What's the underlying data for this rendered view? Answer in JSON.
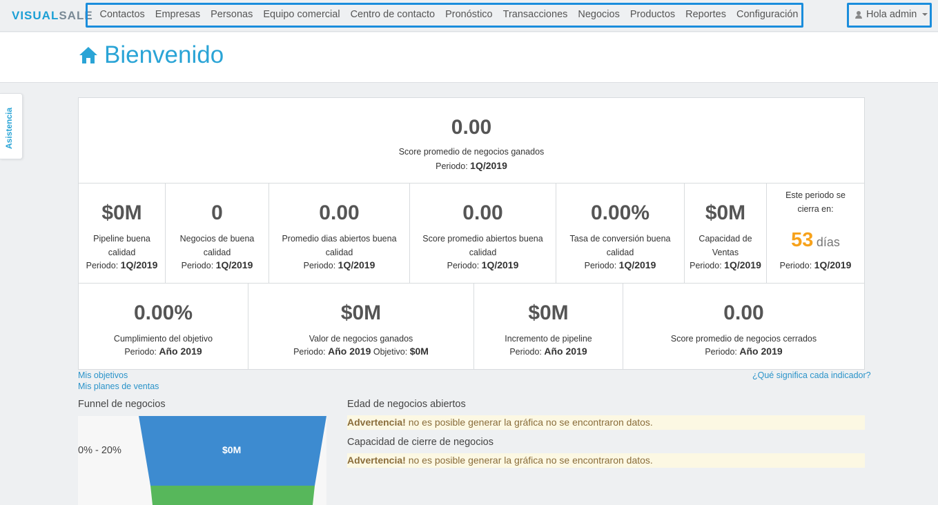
{
  "brand": {
    "part1": "VISUAL",
    "part2": "SALE"
  },
  "nav": {
    "items": [
      "Contactos",
      "Empresas",
      "Personas",
      "Equipo comercial",
      "Centro de contacto",
      "Pronóstico",
      "Transacciones",
      "Negocios",
      "Productos",
      "Reportes",
      "Configuración"
    ],
    "user_label": "Hola admin"
  },
  "side_tab": {
    "label": "Asistencia"
  },
  "page": {
    "title": "Bienvenido"
  },
  "top_kpi": {
    "value": "0.00",
    "label": "Score promedio de negocios ganados",
    "period_prefix": "Periodo:",
    "period": "1Q/2019"
  },
  "row1": [
    {
      "value": "$0M",
      "label": "Pipeline buena calidad",
      "period_prefix": "Periodo:",
      "period": "1Q/2019"
    },
    {
      "value": "0",
      "label": "Negocios de buena calidad",
      "period_prefix": "Periodo:",
      "period": "1Q/2019"
    },
    {
      "value": "0.00",
      "label": "Promedio dias abiertos buena calidad",
      "period_prefix": "Periodo:",
      "period": "1Q/2019"
    },
    {
      "value": "0.00",
      "label": "Score promedio abiertos buena calidad",
      "period_prefix": "Periodo:",
      "period": "1Q/2019"
    },
    {
      "value": "0.00%",
      "label": "Tasa de conversión buena calidad",
      "period_prefix": "Periodo:",
      "period": "1Q/2019"
    },
    {
      "value": "$0M",
      "label": "Capacidad de Ventas",
      "period_prefix": "Periodo:",
      "period": "1Q/2019"
    }
  ],
  "closing": {
    "label": "Este periodo se cierra en:",
    "days": "53",
    "days_word": "días",
    "period_prefix": "Periodo:",
    "period": "1Q/2019"
  },
  "row2": [
    {
      "value": "0.00%",
      "label": "Cumplimiento del objetivo",
      "period_prefix": "Periodo:",
      "period": "Año 2019"
    },
    {
      "value": "$0M",
      "label": "Valor de negocios ganados",
      "period_prefix": "Periodo:",
      "period": "Año 2019",
      "goal_prefix": "Objetivo:",
      "goal": "$0M"
    },
    {
      "value": "$0M",
      "label": "Incremento de pipeline",
      "period_prefix": "Periodo:",
      "period": "Año 2019"
    },
    {
      "value": "0.00",
      "label": "Score promedio de negocios cerrados",
      "period_prefix": "Periodo:",
      "period": "Año 2019"
    }
  ],
  "links": {
    "objectives": "Mis objetivos",
    "sales_plans": "Mis planes de ventas",
    "help": "¿Qué significa cada indicador?"
  },
  "funnel": {
    "title": "Funnel de negocios",
    "range_label": "0% - 20%",
    "value": "$0M",
    "colors": {
      "top": "#3d8bd0",
      "bottom": "#57b75b"
    }
  },
  "age_chart": {
    "title": "Edad de negocios abiertos",
    "warning_strong": "Advertencia!",
    "warning_text": "no es posible generar la gráfica no se encontraron datos."
  },
  "capacity_chart": {
    "title": "Capacidad de cierre de negocios",
    "warning_strong": "Advertencia!",
    "warning_text": "no es posible generar la gráfica no se encontraron datos."
  }
}
